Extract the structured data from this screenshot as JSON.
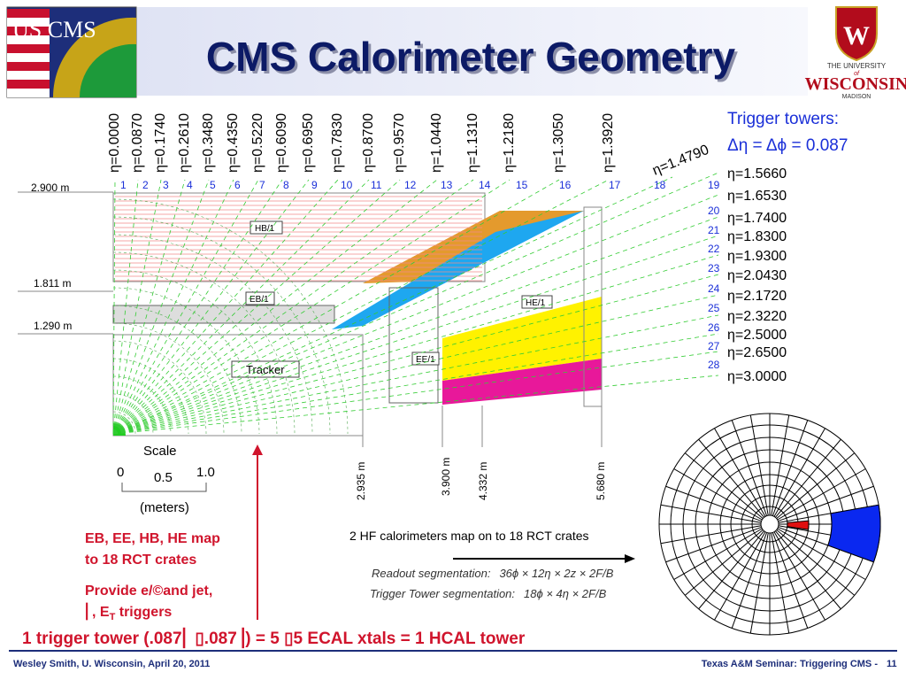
{
  "title": "CMS Calorimeter Geometry",
  "logos": {
    "left": "US CMS",
    "right_top": "THE UNIVERSITY",
    "right_of": "of",
    "right_name": "WISCONSIN",
    "right_bottom": "MADISON"
  },
  "trigger_towers": {
    "heading": "Trigger towers:",
    "size": "Δη = Δϕ = 0.087"
  },
  "eta_top": [
    "η=0.0000",
    "η=0.0870",
    "η=0.1740",
    "η=0.2610",
    "η=0.3480",
    "η=0.4350",
    "η=0.5220",
    "η=0.6090",
    "η=0.6950",
    "η=0.7830",
    "η=0.8700",
    "η=0.9570",
    "η=1.0440",
    "η=1.1310",
    "η=1.2180",
    "η=1.3050",
    "η=1.3920"
  ],
  "eta_corner": "η=1.4790",
  "eta_right": [
    "η=1.5660",
    "η=1.6530",
    "η=1.7400",
    "η=1.8300",
    "η=1.9300",
    "η=2.0430",
    "η=2.1720",
    "η=2.3220",
    "η=2.5000",
    "η=2.6500",
    "η=3.0000"
  ],
  "towers": [
    1,
    2,
    3,
    4,
    5,
    6,
    7,
    8,
    9,
    10,
    11,
    12,
    13,
    14,
    15,
    16,
    17,
    18,
    19,
    20,
    21,
    22,
    23,
    24,
    25,
    26,
    27,
    28
  ],
  "radii": [
    "2.900 m",
    "1.811 m",
    "1.290 m"
  ],
  "z_positions": [
    "2.935 m",
    "3.900 m",
    "4.332 m",
    "5.680 m"
  ],
  "detectors": {
    "hb": "HB/1",
    "eb": "EB/1",
    "he": "HE/1",
    "ee": "EE/1",
    "tracker": "Tracker"
  },
  "scale": {
    "title": "Scale",
    "ticks": [
      "0",
      "0.5",
      "1.0"
    ],
    "unit": "(meters)"
  },
  "notes": {
    "map1": "EB, EE, HB, HE map",
    "map2": "to 18 RCT crates",
    "provide1": "Provide e/©and jet,",
    "provide2": "⎜, E",
    "provide2_sub": "T",
    "provide2_end": " triggers",
    "tower_def": "1 trigger tower (.087⎜ ▯.087⎟) = 5 ▯5 ECAL xtals = 1 HCAL tower",
    "hf": "2 HF calorimeters map on to 18 RCT crates",
    "readout_label": "Readout  segmentation:",
    "readout": "36ϕ × 12η × 2z × 2F/B",
    "trigger_label": "Trigger Tower  segmentation:",
    "trigger": "18ϕ × 4η × 2F/B"
  },
  "footer": {
    "left": "Wesley Smith, U. Wisconsin, April 20, 2011",
    "right": "Texas A&M Seminar: Triggering CMS -",
    "page": "11"
  }
}
